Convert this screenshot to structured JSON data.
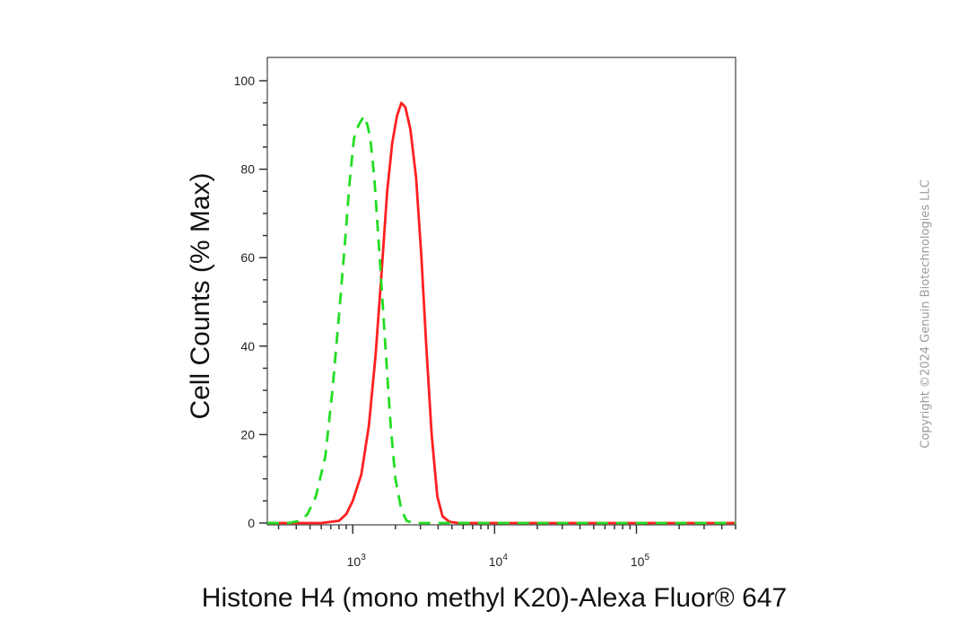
{
  "chart_data": {
    "type": "line",
    "title": "",
    "xlabel": "Histone H4 (mono methyl K20)-Alexa Fluor® 647",
    "ylabel": "Cell Counts (% Max)",
    "x_scale": "log",
    "xlim": [
      250,
      500000
    ],
    "ylim": [
      0,
      105
    ],
    "grid": false,
    "legend": "none",
    "y_ticks": [
      "0",
      "20",
      "40",
      "60",
      "80",
      "100"
    ],
    "y_tick_values": [
      0,
      20,
      40,
      60,
      80,
      100
    ],
    "x_tick_values": [
      1000,
      10000,
      100000
    ],
    "x_tick_labels": [
      {
        "base": "10",
        "exp": "3"
      },
      {
        "base": "10",
        "exp": "4"
      },
      {
        "base": "10",
        "exp": "5"
      }
    ],
    "series": [
      {
        "color": "#ff2020",
        "style": "solid",
        "points": [
          [
            250,
            0
          ],
          [
            600,
            0
          ],
          [
            800,
            0.5
          ],
          [
            900,
            2
          ],
          [
            1000,
            5
          ],
          [
            1150,
            11
          ],
          [
            1300,
            22
          ],
          [
            1450,
            38
          ],
          [
            1600,
            57
          ],
          [
            1750,
            75
          ],
          [
            1900,
            86
          ],
          [
            2050,
            92
          ],
          [
            2200,
            95
          ],
          [
            2350,
            94
          ],
          [
            2550,
            89
          ],
          [
            2800,
            78
          ],
          [
            3050,
            60
          ],
          [
            3300,
            40
          ],
          [
            3600,
            20
          ],
          [
            3950,
            6
          ],
          [
            4300,
            1.5
          ],
          [
            4800,
            0.3
          ],
          [
            5500,
            0
          ],
          [
            500000,
            0
          ]
        ]
      },
      {
        "color": "#22dd22",
        "style": "dashed",
        "points": [
          [
            250,
            0
          ],
          [
            350,
            0
          ],
          [
            430,
            0.5
          ],
          [
            480,
            2
          ],
          [
            550,
            6
          ],
          [
            640,
            15
          ],
          [
            720,
            30
          ],
          [
            800,
            47
          ],
          [
            880,
            63
          ],
          [
            950,
            77
          ],
          [
            1020,
            87
          ],
          [
            1100,
            90
          ],
          [
            1200,
            92
          ],
          [
            1270,
            90
          ],
          [
            1330,
            87
          ],
          [
            1420,
            78
          ],
          [
            1550,
            60
          ],
          [
            1700,
            40
          ],
          [
            1850,
            22
          ],
          [
            2000,
            10
          ],
          [
            2200,
            3
          ],
          [
            2400,
            0.5
          ],
          [
            2700,
            0
          ],
          [
            500000,
            0
          ]
        ]
      }
    ]
  },
  "watermark": "Copyright ©2024 Genuin Biotechnologies LLC"
}
